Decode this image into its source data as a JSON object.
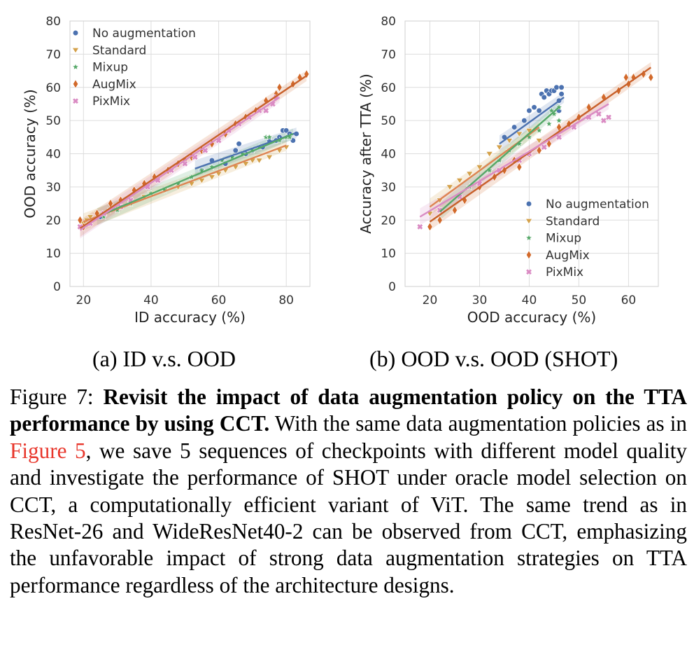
{
  "colors": {
    "no_augmentation": "#4c72b0",
    "standard": "#dd8452",
    "standard_marker": "#d4a14a",
    "mixup": "#55a868",
    "augmix": "#c44e52",
    "augmix_marker": "#d2692a",
    "pixmix": "#da8bc3"
  },
  "panel_captions": {
    "a": "(a) ID v.s. OOD",
    "b": "(b) OOD v.s. OOD (SHOT)"
  },
  "caption": {
    "label": "Figure 7:",
    "bold": "Revisit the impact of data augmentation policy on the TTA performance by using CCT.",
    "text_before_ref": "With the same data aug­mentation policies as in",
    "ref": "Figure 5",
    "text_after_ref": ", we save 5 sequences of check­points with different model quality and investigate the performance of SHOT under oracle model selection on CCT, a computation­ally efficient variant of ViT. The same trend as in ResNet-26 and WideResNet40-2 can be observed from CCT, emphasizing the unfavorable impact of strong data augmentation strategies on TTA performance regardless of the architecture designs."
  },
  "chart_data": [
    {
      "type": "scatter",
      "xlabel": "ID accuracy (%)",
      "ylabel": "OOD accuracy (%)",
      "xlim": [
        16,
        87
      ],
      "ylim": [
        0,
        80
      ],
      "xticks": [
        20,
        40,
        60,
        80
      ],
      "yticks": [
        0,
        10,
        20,
        30,
        40,
        50,
        60,
        70,
        80
      ],
      "grid": true,
      "legend_position": "top-left",
      "regression_lines": true,
      "series": [
        {
          "name": "No augmentation",
          "marker": "circle",
          "color": "#4c72b0",
          "points": [
            [
              25,
              21
            ],
            [
              55,
              35
            ],
            [
              58,
              38
            ],
            [
              62,
              37
            ],
            [
              65,
              41
            ],
            [
              66,
              43
            ],
            [
              68,
              40
            ],
            [
              70,
              41
            ],
            [
              73,
              42
            ],
            [
              75,
              44
            ],
            [
              77,
              44
            ],
            [
              78,
              45
            ],
            [
              79,
              47
            ],
            [
              80,
              47
            ],
            [
              81,
              46
            ],
            [
              82,
              44
            ],
            [
              83,
              46
            ]
          ],
          "fit": [
            [
              53,
              35.5
            ],
            [
              83,
              46.3
            ]
          ]
        },
        {
          "name": "Standard",
          "marker": "triangle-down",
          "color": "#d4a14a",
          "points": [
            [
              20,
              19
            ],
            [
              21,
              20
            ],
            [
              22,
              21
            ],
            [
              24,
              22
            ],
            [
              28,
              23
            ],
            [
              30,
              24
            ],
            [
              34,
              25
            ],
            [
              38,
              27
            ],
            [
              40,
              28
            ],
            [
              44,
              29
            ],
            [
              48,
              30
            ],
            [
              52,
              31
            ],
            [
              55,
              32
            ],
            [
              58,
              33
            ],
            [
              60,
              34
            ],
            [
              62,
              35
            ],
            [
              65,
              36
            ],
            [
              68,
              37
            ],
            [
              70,
              38
            ],
            [
              72,
              38
            ],
            [
              75,
              39
            ],
            [
              78,
              41
            ],
            [
              80,
              42
            ]
          ],
          "fit": [
            [
              20,
              19.5
            ],
            [
              80,
              42.5
            ]
          ]
        },
        {
          "name": "Mixup",
          "marker": "star",
          "color": "#55a868",
          "points": [
            [
              26,
              21
            ],
            [
              30,
              23
            ],
            [
              34,
              25
            ],
            [
              40,
              28
            ],
            [
              44,
              29
            ],
            [
              48,
              31
            ],
            [
              52,
              33
            ],
            [
              55,
              35
            ],
            [
              58,
              36
            ],
            [
              61,
              38
            ],
            [
              64,
              39
            ],
            [
              67,
              40
            ],
            [
              70,
              41
            ],
            [
              72,
              42
            ],
            [
              74,
              45
            ],
            [
              75,
              45
            ],
            [
              78,
              44
            ],
            [
              80,
              45
            ],
            [
              81,
              45
            ]
          ],
          "fit": [
            [
              24,
              21
            ],
            [
              82,
              46
            ]
          ]
        },
        {
          "name": "AugMix",
          "marker": "diamond",
          "color": "#d2692a",
          "points": [
            [
              19,
              20
            ],
            [
              20,
              18
            ],
            [
              24,
              22
            ],
            [
              28,
              25
            ],
            [
              31,
              26
            ],
            [
              35,
              29
            ],
            [
              38,
              31
            ],
            [
              41,
              33
            ],
            [
              45,
              35
            ],
            [
              48,
              37
            ],
            [
              50,
              38
            ],
            [
              52,
              39
            ],
            [
              55,
              41
            ],
            [
              58,
              43
            ],
            [
              62,
              46
            ],
            [
              65,
              49
            ],
            [
              68,
              51
            ],
            [
              71,
              53
            ],
            [
              74,
              56
            ],
            [
              77,
              58
            ],
            [
              78,
              60
            ],
            [
              82,
              61
            ],
            [
              84,
              63
            ],
            [
              86,
              64
            ]
          ],
          "fit": [
            [
              19,
              17.5
            ],
            [
              86,
              63.5
            ]
          ]
        },
        {
          "name": "PixMix",
          "marker": "cross",
          "color": "#da8bc3",
          "points": [
            [
              19,
              18
            ],
            [
              22,
              19
            ],
            [
              26,
              22
            ],
            [
              31,
              24
            ],
            [
              34,
              26
            ],
            [
              39,
              30
            ],
            [
              42,
              32
            ],
            [
              46,
              35
            ],
            [
              50,
              37
            ],
            [
              53,
              39
            ],
            [
              56,
              41
            ],
            [
              60,
              44
            ],
            [
              63,
              47
            ],
            [
              66,
              49
            ],
            [
              69,
              51
            ],
            [
              72,
              53
            ],
            [
              74,
              53
            ],
            [
              76,
              55
            ],
            [
              77,
              57
            ]
          ],
          "fit": [
            [
              19,
              17
            ],
            [
              78,
              57
            ]
          ]
        }
      ]
    },
    {
      "type": "scatter",
      "xlabel": "OOD accuracy (%)",
      "ylabel": "Accuracy after TTA (%)",
      "xlim": [
        15,
        66
      ],
      "ylim": [
        0,
        80
      ],
      "xticks": [
        20,
        30,
        40,
        50,
        60
      ],
      "yticks": [
        0,
        10,
        20,
        30,
        40,
        50,
        60,
        70,
        80
      ],
      "grid": true,
      "legend_position": "bottom-right",
      "regression_lines": true,
      "series": [
        {
          "name": "No augmentation",
          "marker": "circle",
          "color": "#4c72b0",
          "points": [
            [
              35,
              45
            ],
            [
              37,
              48
            ],
            [
              39,
              50
            ],
            [
              40,
              53
            ],
            [
              41,
              54
            ],
            [
              42,
              53
            ],
            [
              42.5,
              58
            ],
            [
              43,
              57
            ],
            [
              43.5,
              59
            ],
            [
              44,
              58
            ],
            [
              44.5,
              59
            ],
            [
              45,
              59
            ],
            [
              45.5,
              60
            ],
            [
              46,
              56
            ],
            [
              46,
              53
            ],
            [
              46.5,
              58
            ],
            [
              46.5,
              60
            ]
          ],
          "fit": [
            [
              34,
              43
            ],
            [
              47,
              57
            ]
          ]
        },
        {
          "name": "Standard",
          "marker": "triangle-down",
          "color": "#d4a14a",
          "points": [
            [
              20,
              22
            ],
            [
              22,
              26
            ],
            [
              24,
              30
            ],
            [
              26,
              32
            ],
            [
              28,
              34
            ],
            [
              30,
              36
            ],
            [
              32,
              40
            ],
            [
              34,
              42
            ],
            [
              36,
              44
            ],
            [
              38,
              46
            ],
            [
              40,
              47
            ],
            [
              42,
              44
            ]
          ],
          "fit": [
            [
              20,
              24
            ],
            [
              42,
              48
            ]
          ]
        },
        {
          "name": "Mixup",
          "marker": "star",
          "color": "#55a868",
          "points": [
            [
              22,
              20
            ],
            [
              28,
              30
            ],
            [
              32,
              35
            ],
            [
              34,
              38
            ],
            [
              36,
              41
            ],
            [
              38,
              43
            ],
            [
              40,
              45
            ],
            [
              42,
              47
            ],
            [
              44,
              49
            ],
            [
              44.5,
              53
            ],
            [
              45,
              52
            ],
            [
              46,
              50
            ],
            [
              46,
              54
            ]
          ],
          "fit": [
            [
              22,
              22.5
            ],
            [
              46,
              54
            ]
          ]
        },
        {
          "name": "AugMix",
          "marker": "diamond",
          "color": "#d2692a",
          "points": [
            [
              20,
              18
            ],
            [
              22,
              20
            ],
            [
              25,
              23
            ],
            [
              27,
              26
            ],
            [
              30,
              30
            ],
            [
              33,
              33
            ],
            [
              35,
              35
            ],
            [
              37,
              38
            ],
            [
              38,
              36
            ],
            [
              40,
              40
            ],
            [
              42,
              41
            ],
            [
              44,
              43
            ],
            [
              46,
              48
            ],
            [
              48,
              49
            ],
            [
              50,
              51
            ],
            [
              52,
              54
            ],
            [
              55,
              57
            ],
            [
              58,
              59
            ],
            [
              59.5,
              63
            ],
            [
              60,
              61
            ],
            [
              61,
              63
            ],
            [
              63,
              64
            ],
            [
              64.5,
              63
            ]
          ],
          "fit": [
            [
              20,
              19.5
            ],
            [
              64.5,
              66
            ]
          ]
        },
        {
          "name": "PixMix",
          "marker": "cross",
          "color": "#da8bc3",
          "points": [
            [
              18,
              18
            ],
            [
              22,
              23
            ],
            [
              26,
              27
            ],
            [
              30,
              31
            ],
            [
              34,
              35
            ],
            [
              38,
              38
            ],
            [
              40,
              40
            ],
            [
              43,
              42
            ],
            [
              46,
              45
            ],
            [
              49,
              48
            ],
            [
              52,
              51
            ],
            [
              54,
              52
            ],
            [
              55,
              50
            ],
            [
              56,
              51
            ]
          ],
          "fit": [
            [
              18,
              21
            ],
            [
              56,
              55
            ]
          ]
        }
      ]
    }
  ]
}
